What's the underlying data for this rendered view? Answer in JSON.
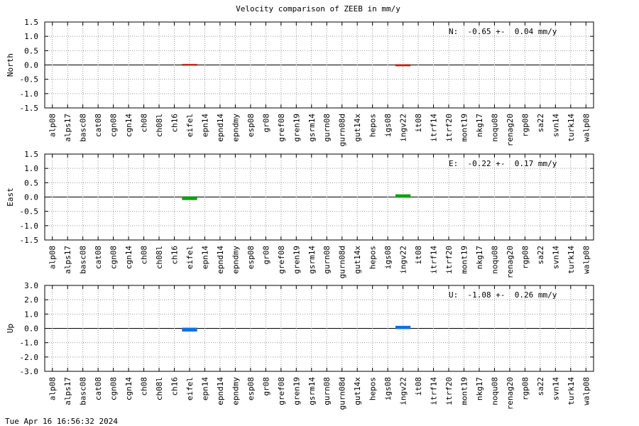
{
  "title": "Velocity comparison of ZEEB in mm/y",
  "timestamp": "Tue Apr 16 16:56:32 2024",
  "chart_data": [
    {
      "type": "bar",
      "ylabel": "North",
      "annotation": "N:  -0.65 +-  0.04 mm/y",
      "categories": [
        "alp08",
        "alps17",
        "basc08",
        "cat08",
        "cgn08",
        "cgn14",
        "ch08",
        "ch08l",
        "ch16",
        "eifel",
        "epn14",
        "epnd14",
        "epndmy",
        "esp08",
        "gr08",
        "gref08",
        "gren19",
        "gsrm14",
        "gurn08",
        "gurn08d",
        "gut14x",
        "hepos",
        "igs08",
        "ingv22",
        "it08",
        "itrf14",
        "itrf20",
        "mont19",
        "nkg17",
        "noqu08",
        "renag20",
        "rgp08",
        "sa22",
        "svn14",
        "turk14",
        "walp08"
      ],
      "values": [
        null,
        null,
        null,
        null,
        null,
        null,
        null,
        null,
        null,
        0.01,
        null,
        null,
        null,
        null,
        null,
        null,
        null,
        null,
        null,
        null,
        null,
        null,
        null,
        -0.02,
        null,
        null,
        null,
        null,
        null,
        null,
        null,
        null,
        null,
        null,
        null,
        null
      ],
      "color": "#c02010",
      "ylim": [
        -1.5,
        1.5
      ],
      "yticks": [
        -1.5,
        {
          "value": -1,
          "label": "-1.0"
        },
        -0.5,
        {
          "value": 0,
          "label": "0.0"
        },
        0.5,
        {
          "value": 1,
          "label": "1.0"
        },
        1.5
      ],
      "grid": true
    },
    {
      "type": "bar",
      "ylabel": "East",
      "annotation": "E:  -0.22 +-  0.17 mm/y",
      "categories": [
        "alp08",
        "alps17",
        "basc08",
        "cat08",
        "cgn08",
        "cgn14",
        "ch08",
        "ch08l",
        "ch16",
        "eifel",
        "epn14",
        "epnd14",
        "epndmy",
        "esp08",
        "gr08",
        "gref08",
        "gren19",
        "gsrm14",
        "gurn08",
        "gurn08d",
        "gut14x",
        "hepos",
        "igs08",
        "ingv22",
        "it08",
        "itrf14",
        "itrf20",
        "mont19",
        "nkg17",
        "noqu08",
        "renag20",
        "rgp08",
        "sa22",
        "svn14",
        "turk14",
        "walp08"
      ],
      "values": [
        null,
        null,
        null,
        null,
        null,
        null,
        null,
        null,
        null,
        -0.08,
        null,
        null,
        null,
        null,
        null,
        null,
        null,
        null,
        null,
        null,
        null,
        null,
        null,
        0.07,
        null,
        null,
        null,
        null,
        null,
        null,
        null,
        null,
        null,
        null,
        null,
        null
      ],
      "color": "#10a010",
      "ylim": [
        -1.5,
        1.5
      ],
      "yticks": [
        -1.5,
        {
          "value": -1,
          "label": "-1.0"
        },
        -0.5,
        {
          "value": 0,
          "label": "0.0"
        },
        0.5,
        {
          "value": 1,
          "label": "1.0"
        },
        1.5
      ],
      "grid": true
    },
    {
      "type": "bar",
      "ylabel": "Up",
      "annotation": "U:  -1.08 +-  0.26 mm/y",
      "categories": [
        "alp08",
        "alps17",
        "basc08",
        "cat08",
        "cgn08",
        "cgn14",
        "ch08",
        "ch08l",
        "ch16",
        "eifel",
        "epn14",
        "epnd14",
        "epndmy",
        "esp08",
        "gr08",
        "gref08",
        "gren19",
        "gsrm14",
        "gurn08",
        "gurn08d",
        "gut14x",
        "hepos",
        "igs08",
        "ingv22",
        "it08",
        "itrf14",
        "itrf20",
        "mont19",
        "nkg17",
        "noqu08",
        "renag20",
        "rgp08",
        "sa22",
        "svn14",
        "turk14",
        "walp08"
      ],
      "values": [
        null,
        null,
        null,
        null,
        null,
        null,
        null,
        null,
        null,
        -0.17,
        null,
        null,
        null,
        null,
        null,
        null,
        null,
        null,
        null,
        null,
        null,
        null,
        null,
        0.13,
        null,
        null,
        null,
        null,
        null,
        null,
        null,
        null,
        null,
        null,
        null,
        null
      ],
      "color": "#1070e0",
      "ylim": [
        -3,
        3
      ],
      "yticks": [
        {
          "value": -3,
          "label": "-3.0"
        },
        {
          "value": -2,
          "label": "-2.0"
        },
        {
          "value": -1,
          "label": "-1.0"
        },
        {
          "value": 0,
          "label": "0.0"
        },
        {
          "value": 1,
          "label": "1.0"
        },
        {
          "value": 2,
          "label": "2.0"
        },
        {
          "value": 3,
          "label": "3.0"
        }
      ],
      "grid": true
    }
  ]
}
